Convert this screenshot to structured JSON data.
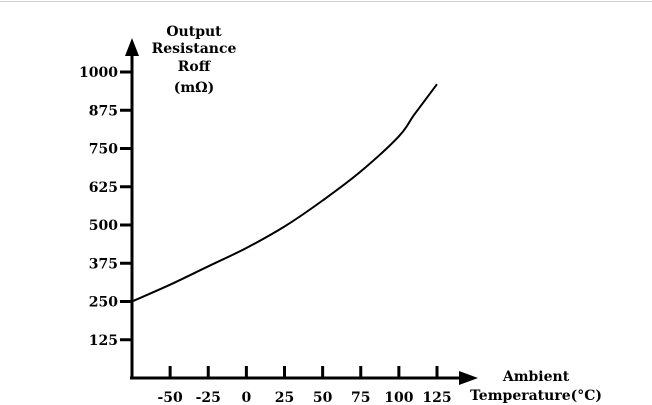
{
  "chart_data": {
    "type": "line",
    "ylabel_lines": [
      "Output",
      "Resistance",
      "Roff",
      "(mΩ)"
    ],
    "xlabel_lines": [
      "Ambient",
      "Temperature(°C)"
    ],
    "x_ticks": [
      "-50",
      "-25",
      "0",
      "25",
      "50",
      "75",
      "100",
      "125"
    ],
    "y_ticks": [
      "125",
      "250",
      "375",
      "500",
      "625",
      "750",
      "875",
      "1000"
    ],
    "xlim": [
      -75,
      125
    ],
    "ylim": [
      0,
      1000
    ],
    "grid": false,
    "series": [
      {
        "x": [
          -75,
          -50,
          -25,
          0,
          25,
          50,
          75,
          100,
          110,
          125
        ],
        "y": [
          250,
          305,
          365,
          425,
          495,
          580,
          675,
          790,
          860,
          960
        ]
      }
    ]
  }
}
